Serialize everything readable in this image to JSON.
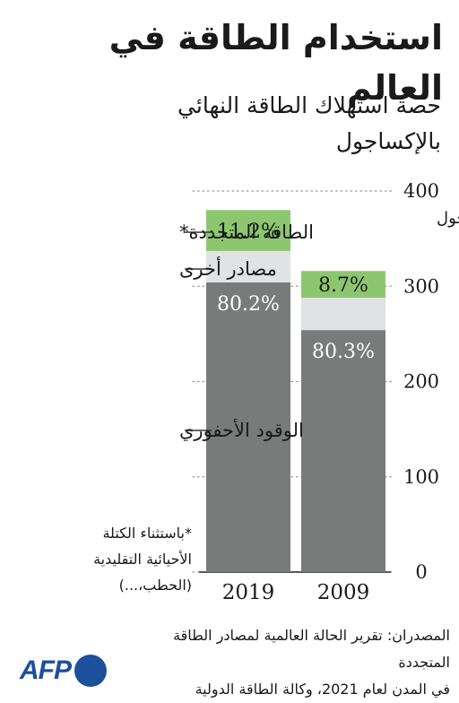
{
  "title": "استخدام الطاقة في العالم",
  "subtitle_lines": [
    "حصة استهلاك الطاقة النهائي",
    "بالإكساجول"
  ],
  "colors": {
    "fossil": "#797b7a",
    "other": "#e0e3e4",
    "renewable": "#8cc770",
    "grid": "#9a9a9a",
    "logo": "#1d4f9c"
  },
  "chart_data": {
    "type": "bar",
    "stacked": true,
    "categories": [
      "2019",
      "2009"
    ],
    "unit": "إكساجول",
    "yticks": [
      0,
      100,
      200,
      300,
      400
    ],
    "ylim": [
      0,
      400
    ],
    "series": [
      {
        "name": "الوقود الأحفوري",
        "values": [
          304,
          254
        ],
        "labels": [
          "80.2%",
          "80.3%"
        ],
        "color": "#797b7a"
      },
      {
        "name": "مصادر أخرى",
        "values": [
          33,
          34
        ],
        "labels": [
          "",
          ""
        ],
        "color": "#e0e3e4"
      },
      {
        "name": "الطاقة المتجددة*",
        "values": [
          43,
          28
        ],
        "labels": [
          "11.2%",
          "8.7%"
        ],
        "color": "#8cc770"
      }
    ]
  },
  "footnote_lines": [
    "*باستثناء الكتلة",
    "الأحيائية التقليدية",
    "(الحطب،...)"
  ],
  "source_lines": [
    "المصدران: تقرير الحالة العالمية لمصادر الطاقة المتجددة",
    "في المدن لعام 2021، وكالة الطاقة الدولية"
  ],
  "logo": {
    "text": "AFP"
  }
}
